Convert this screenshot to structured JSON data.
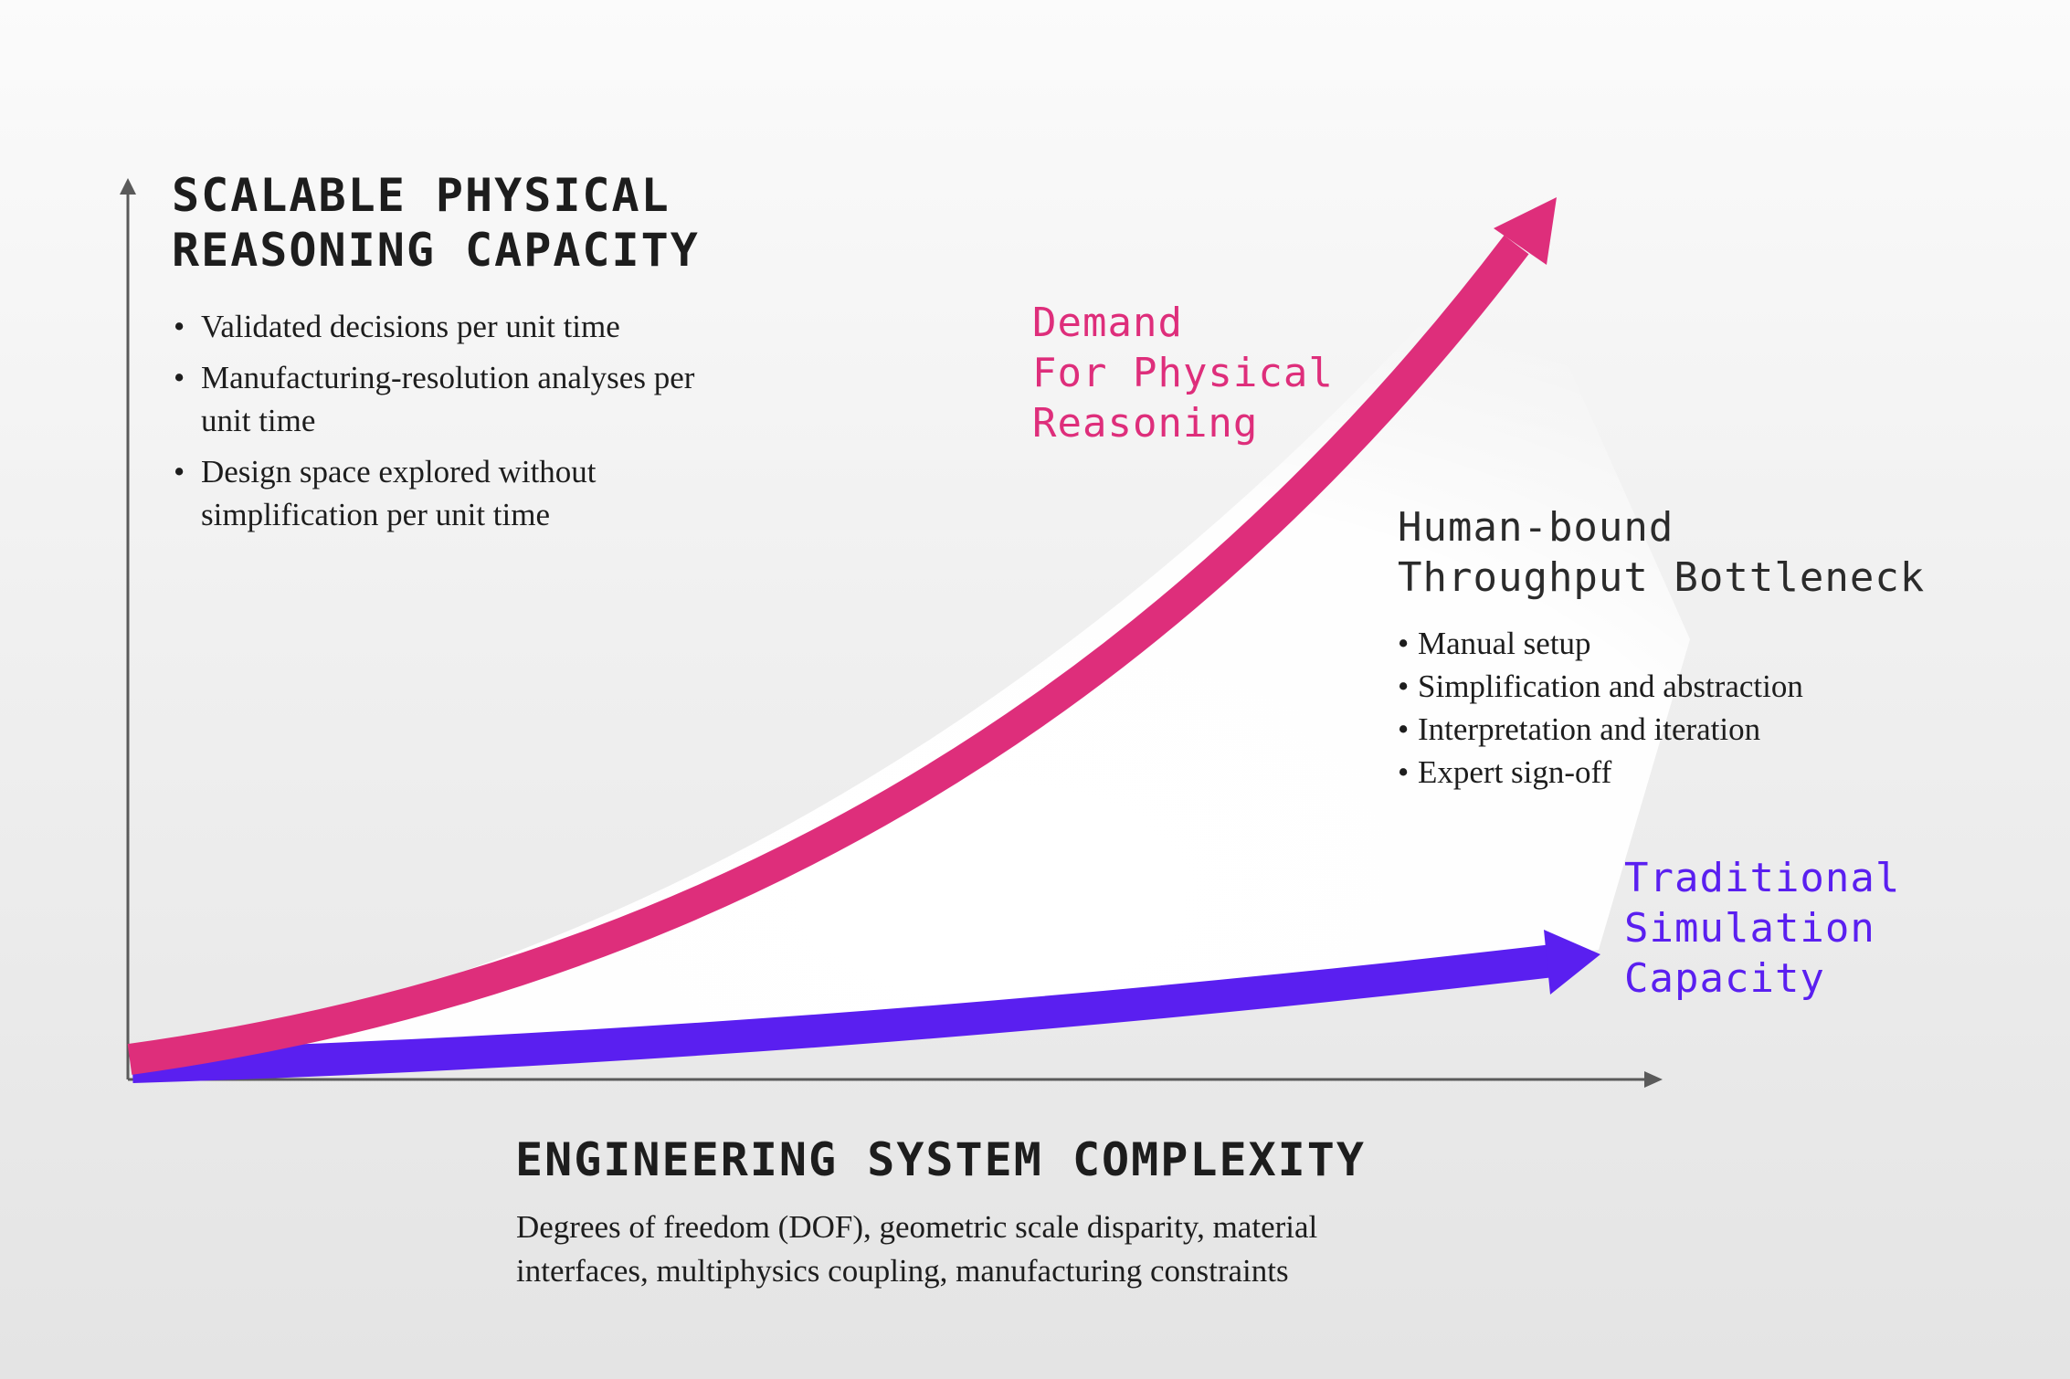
{
  "y_axis": {
    "title_lines": [
      "SCALABLE PHYSICAL",
      "REASONING CAPACITY"
    ],
    "bullets": [
      "Validated decisions per unit time",
      "Manufacturing-resolution analyses per unit time",
      "Design space explored without simplification per unit time"
    ]
  },
  "x_axis": {
    "title": "ENGINEERING SYSTEM COMPLEXITY",
    "description_lines": [
      "Degrees of freedom (DOF), geometric scale disparity, material",
      "interfaces, multiphysics coupling, manufacturing constraints"
    ]
  },
  "curves": {
    "demand": {
      "label_lines": [
        "Demand",
        "For Physical",
        "Reasoning"
      ],
      "color": "#de2e7b"
    },
    "traditional": {
      "label_lines": [
        "Traditional",
        "Simulation",
        "Capacity"
      ],
      "color": "#5a1ff0"
    }
  },
  "gap": {
    "title_lines": [
      "Human-bound",
      "Throughput Bottleneck"
    ],
    "bullets": [
      "Manual setup",
      "Simplification and abstraction",
      "Interpretation and iteration",
      "Expert sign-off"
    ]
  },
  "colors": {
    "axis": "#5a5a5a",
    "text": "#1d1d1d",
    "gap_fill": "#ffffff"
  }
}
